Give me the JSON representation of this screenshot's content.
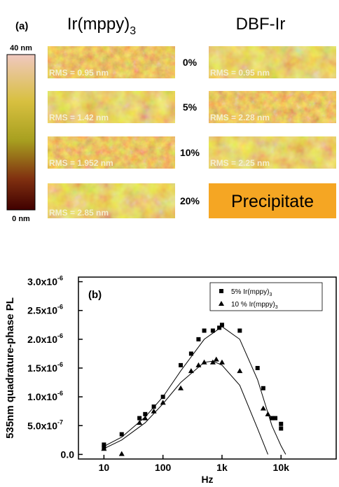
{
  "panel_a": {
    "label": "(a)",
    "columns": [
      {
        "text": "Ir(mppy)",
        "subscript": "3"
      },
      {
        "text": "DBF-Ir"
      }
    ],
    "colorbar": {
      "top": "40 nm",
      "bottom": "0 nm"
    },
    "rows": [
      {
        "concentration": "0%",
        "left": "RMS = 0.95 nm",
        "right": "RMS = 0.95 nm"
      },
      {
        "concentration": "5%",
        "left": "RMS = 1.42 nm",
        "right": "RMS = 2.28 nm"
      },
      {
        "concentration": "10%",
        "left": "RMS = 1.952 nm",
        "right": "RMS = 2.25 nm"
      },
      {
        "concentration": "20%",
        "left": "RMS = 2.85 nm",
        "right": "Precipitate"
      }
    ]
  },
  "chart_data": {
    "type": "scatter",
    "panel_label": "(b)",
    "x_label": "Hz",
    "y_label": "535nm quadrature-phase PL",
    "xscale": "log",
    "xlim": [
      3.7,
      86000
    ],
    "xticks": [
      10,
      100,
      {
        "value": 1000,
        "label": "1k"
      },
      {
        "value": 10000,
        "label": "10k"
      }
    ],
    "ylim": [
      -8e-08,
      3.08e-06
    ],
    "yticks": [
      {
        "value": 0,
        "label": "0.0"
      },
      {
        "value": 5e-07,
        "label": "5.0x10",
        "exp": "-7"
      },
      {
        "value": 1e-06,
        "label": "1.0x10",
        "exp": "-6"
      },
      {
        "value": 1.5e-06,
        "label": "1.5x10",
        "exp": "-6"
      },
      {
        "value": 2e-06,
        "label": "2.0x10",
        "exp": "-6"
      },
      {
        "value": 2.5e-06,
        "label": "2.5x10",
        "exp": "-6"
      },
      {
        "value": 3e-06,
        "label": "3.0x10",
        "exp": "-6"
      }
    ],
    "legend": "upper right",
    "series": [
      {
        "name": "5% Ir(mppy)",
        "subscript": "3",
        "marker": "square",
        "color": "#000000",
        "x": [
          10,
          10,
          20,
          40,
          50,
          70,
          100,
          200,
          300,
          400,
          500,
          700,
          900,
          1000,
          2000,
          4000,
          5000,
          7000,
          8000,
          10000,
          10000
        ],
        "values": [
          1.7e-07,
          1.2e-07,
          3.5e-07,
          6.3e-07,
          7e-07,
          8.3e-07,
          1e-06,
          1.55e-06,
          1.75e-06,
          2e-06,
          2.15e-06,
          2.15e-06,
          2.2e-06,
          2.25e-06,
          2.15e-06,
          1.5e-06,
          1.15e-06,
          6.3e-07,
          6.3e-07,
          5.3e-07,
          4.5e-07
        ]
      },
      {
        "name": "10 % Ir(mppy)",
        "subscript": "3",
        "marker": "triangle",
        "color": "#000000",
        "x": [
          10,
          20,
          40,
          50,
          70,
          100,
          200,
          300,
          400,
          500,
          700,
          800,
          1000,
          2000,
          5000,
          6000
        ],
        "values": [
          1e-07,
          1e-08,
          5.5e-07,
          6.3e-07,
          7.5e-07,
          9e-07,
          1.15e-06,
          1.45e-06,
          1.55e-06,
          1.6e-06,
          1.6e-06,
          1.65e-06,
          1.6e-06,
          1.45e-06,
          8e-07,
          7e-07
        ]
      }
    ],
    "fit_curves": [
      {
        "color": "#000000",
        "x": [
          10,
          20,
          50,
          100,
          200,
          500,
          1000,
          2000,
          4000,
          7000,
          10000,
          12000
        ],
        "values": [
          1.4e-07,
          3e-07,
          6.5e-07,
          1e-06,
          1.45e-06,
          2e-06,
          2.22e-06,
          2e-06,
          1.3e-06,
          5e-07,
          1.5e-07,
          0
        ]
      },
      {
        "color": "#000000",
        "x": [
          10,
          20,
          50,
          100,
          200,
          500,
          700,
          1000,
          2000,
          4000,
          6000
        ],
        "values": [
          1e-07,
          2.5e-07,
          5.5e-07,
          8.8e-07,
          1.25e-06,
          1.6e-06,
          1.62e-06,
          1.55e-06,
          1.2e-06,
          4.5e-07,
          0
        ]
      }
    ]
  }
}
